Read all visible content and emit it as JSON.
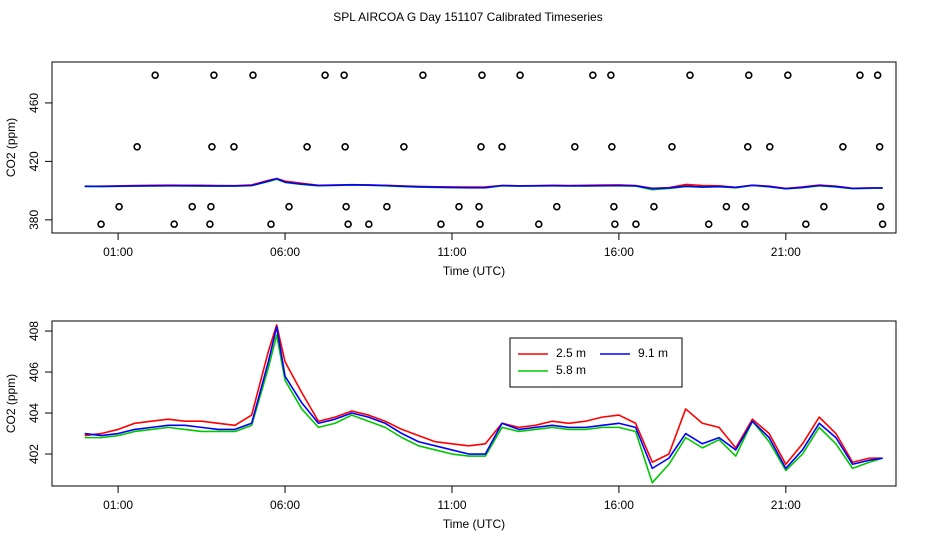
{
  "title": "SPL AIRCOA G  Day 151107  Calibrated Timeseries",
  "chart_data": [
    {
      "type": "scatter",
      "xlabel": "Time (UTC)",
      "ylabel": "CO2 (ppm)",
      "xlim": [
        -0.98,
        24.3
      ],
      "ylim": [
        371,
        488
      ],
      "xticks": [
        {
          "value": 1,
          "label": "01:00"
        },
        {
          "value": 6,
          "label": "06:00"
        },
        {
          "value": 11,
          "label": "11:00"
        },
        {
          "value": 16,
          "label": "16:00"
        },
        {
          "value": 21,
          "label": "21:00"
        }
      ],
      "yticks": [
        380,
        420,
        460
      ],
      "color": "#000000",
      "x": [
        2.11,
        3.87,
        5.04,
        7.2,
        7.77,
        10.13,
        11.9,
        13.04,
        15.22,
        15.76,
        18.13,
        19.89,
        21.06,
        23.22,
        23.75,
        1.57,
        3.81,
        4.47,
        6.66,
        7.8,
        9.56,
        11.87,
        12.5,
        14.68,
        15.79,
        17.59,
        19.86,
        20.52,
        22.71,
        23.81,
        1.03,
        3.22,
        3.78,
        6.12,
        7.83,
        9.05,
        11.21,
        11.81,
        14.14,
        15.85,
        17.05,
        19.22,
        19.8,
        22.14,
        23.84,
        0.49,
        2.68,
        3.75,
        5.58,
        7.89,
        8.51,
        10.67,
        11.84,
        13.6,
        15.88,
        16.51,
        18.69,
        19.77,
        21.6,
        23.9
      ],
      "values": [
        479,
        479,
        479,
        479,
        479,
        479,
        479,
        479,
        479,
        479,
        479,
        479,
        479,
        479,
        479,
        430,
        430,
        430,
        430,
        430,
        430,
        430,
        430,
        430,
        430,
        430,
        430,
        430,
        430,
        430,
        389,
        389,
        389,
        389,
        389,
        389,
        389,
        389,
        389,
        389,
        389,
        389,
        389,
        389,
        389,
        377,
        377,
        377,
        377,
        377,
        377,
        377,
        377,
        377,
        377,
        377,
        377,
        377,
        377,
        377
      ]
    },
    {
      "type": "line",
      "xlabel": "Time (UTC)",
      "ylabel": "CO2 (ppm)",
      "xlim": [
        -0.98,
        24.3
      ],
      "ylim": [
        400.44,
        408.49
      ],
      "xticks": [
        {
          "value": 1,
          "label": "01:00"
        },
        {
          "value": 6,
          "label": "06:00"
        },
        {
          "value": 11,
          "label": "11:00"
        },
        {
          "value": 16,
          "label": "16:00"
        },
        {
          "value": 21,
          "label": "21:00"
        }
      ],
      "yticks": [
        402,
        404,
        406,
        408
      ],
      "x": [
        0,
        0.5,
        1,
        1.5,
        2,
        2.5,
        3,
        3.5,
        4,
        4.5,
        5,
        5.5,
        5.75,
        6,
        6.5,
        7,
        7.5,
        8,
        8.5,
        9,
        9.5,
        10,
        10.5,
        11,
        11.5,
        12,
        12.5,
        13,
        13.5,
        14,
        14.5,
        15,
        15.5,
        16,
        16.5,
        17,
        17.5,
        18,
        18.5,
        19,
        19.5,
        20,
        20.5,
        21,
        21.5,
        22,
        22.5,
        23,
        23.5,
        23.9
      ],
      "series": [
        {
          "name": "2.5 m",
          "color": "#ff0000",
          "values": [
            402.9,
            403.0,
            403.2,
            403.5,
            403.6,
            403.7,
            403.6,
            403.6,
            403.5,
            403.4,
            403.9,
            407.0,
            408.3,
            406.5,
            405.0,
            403.6,
            403.8,
            404.1,
            403.9,
            403.6,
            403.2,
            402.9,
            402.6,
            402.5,
            402.4,
            402.5,
            403.5,
            403.3,
            403.4,
            403.6,
            403.5,
            403.6,
            403.8,
            403.9,
            403.5,
            401.6,
            402.0,
            404.2,
            403.5,
            403.3,
            402.3,
            403.7,
            403.0,
            401.5,
            402.5,
            403.8,
            403.0,
            401.6,
            401.8,
            401.8
          ]
        },
        {
          "name": "5.8 m",
          "color": "#00c800",
          "values": [
            402.8,
            402.8,
            402.9,
            403.1,
            403.2,
            403.3,
            403.2,
            403.1,
            403.1,
            403.1,
            403.4,
            406.2,
            407.8,
            405.6,
            404.2,
            403.3,
            403.5,
            403.9,
            403.6,
            403.3,
            402.8,
            402.4,
            402.2,
            402.0,
            401.9,
            401.9,
            403.3,
            403.1,
            403.2,
            403.3,
            403.2,
            403.2,
            403.3,
            403.3,
            403.1,
            400.6,
            401.5,
            402.8,
            402.3,
            402.7,
            401.9,
            403.6,
            402.6,
            401.2,
            402.0,
            403.3,
            402.5,
            401.3,
            401.6,
            401.8
          ]
        },
        {
          "name": "9.1 m",
          "color": "#0000ff",
          "values": [
            403.0,
            402.9,
            403.0,
            403.2,
            403.3,
            403.4,
            403.4,
            403.3,
            403.2,
            403.2,
            403.5,
            406.5,
            408.2,
            405.8,
            404.5,
            403.5,
            403.7,
            404.0,
            403.8,
            403.5,
            403.0,
            402.6,
            402.4,
            402.2,
            402.0,
            402.0,
            403.5,
            403.2,
            403.3,
            403.4,
            403.3,
            403.3,
            403.4,
            403.5,
            403.3,
            401.3,
            401.8,
            403.0,
            402.5,
            402.8,
            402.2,
            403.6,
            402.8,
            401.3,
            402.2,
            403.5,
            402.8,
            401.5,
            401.7,
            401.8
          ]
        }
      ]
    }
  ]
}
